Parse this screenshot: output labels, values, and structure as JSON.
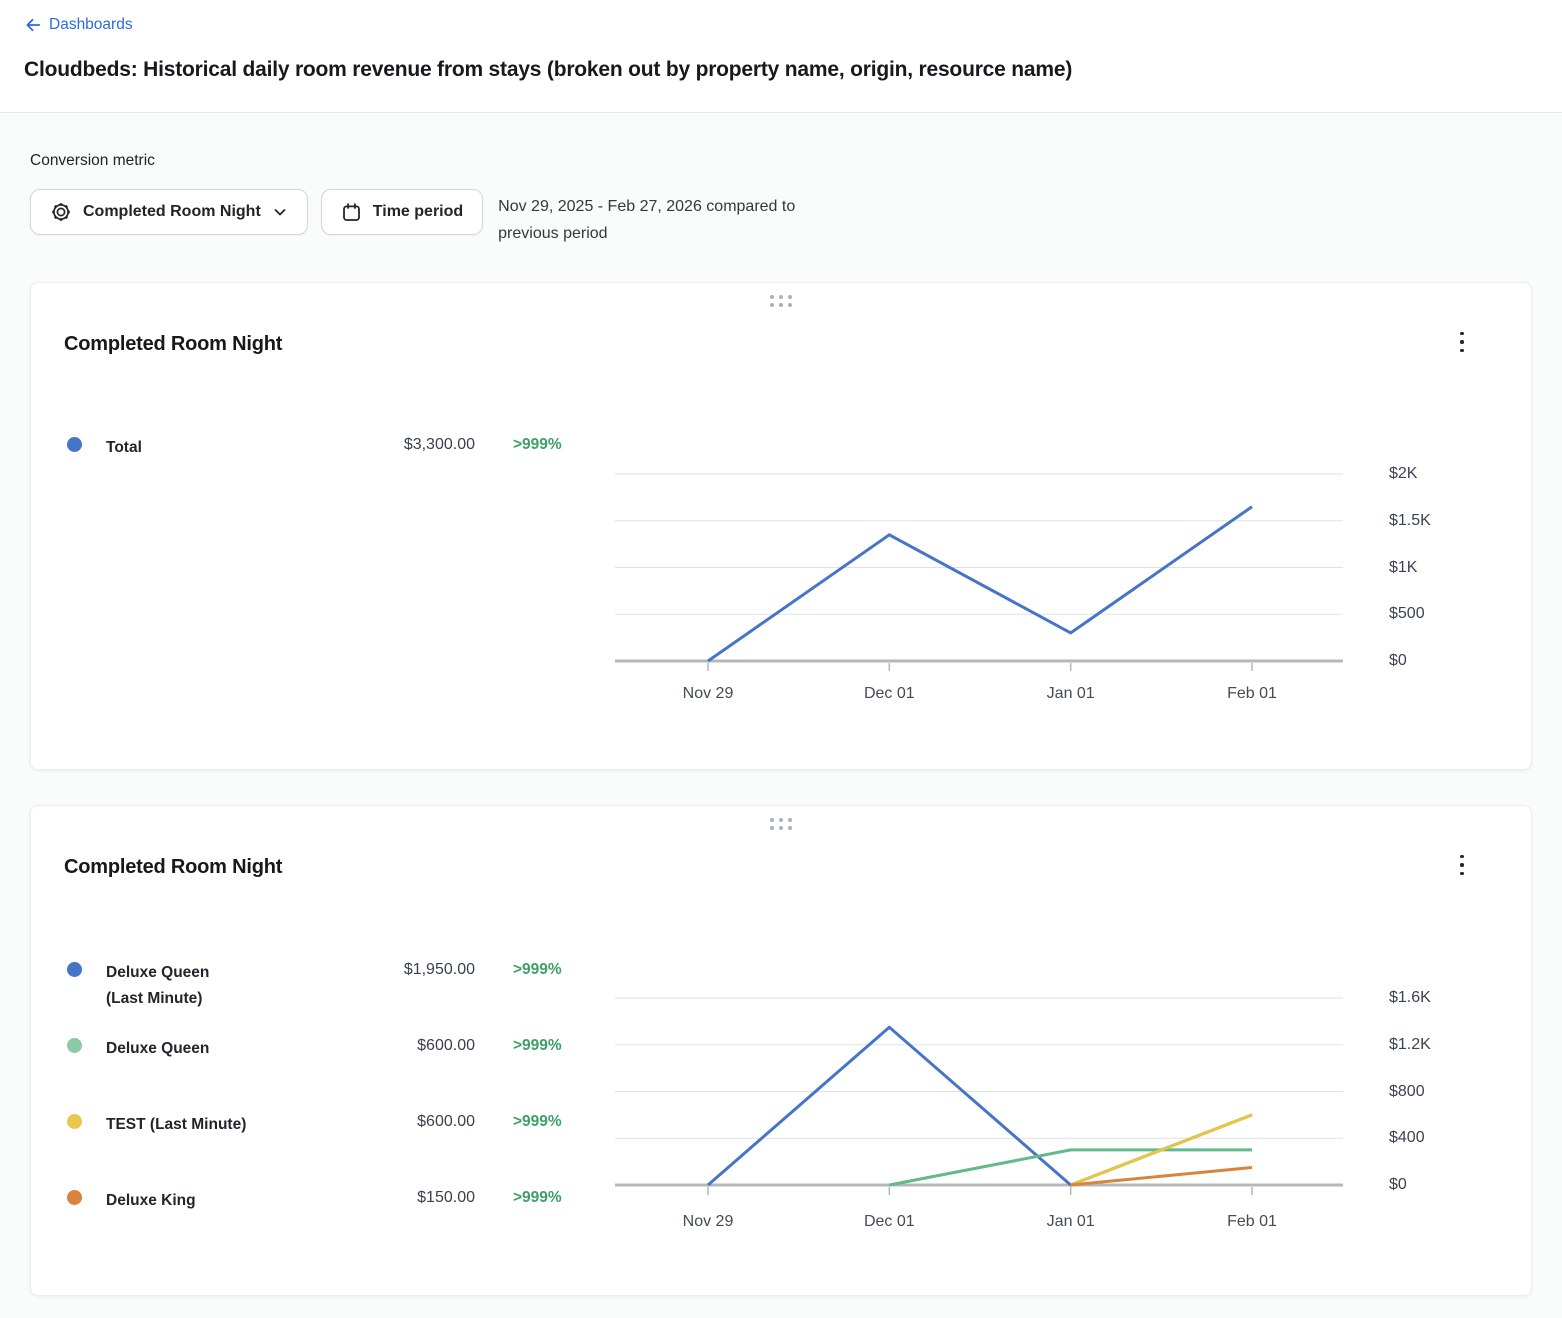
{
  "header": {
    "back": "Dashboards",
    "title": "Cloudbeds: Historical daily room revenue from stays (broken out by property name, origin, resource name)"
  },
  "controls": {
    "metric_label": "Conversion metric",
    "metric_value": "Completed Room Night",
    "time_period": "Time period",
    "date_line1": "Nov 29, 2025 - Feb 27, 2026 compared to",
    "date_line2": "previous period"
  },
  "colors": {
    "link_blue": "#2e6ae0",
    "positive_green": "#3da066",
    "axis_gray": "#b4b8bc",
    "gridline": "#dde2e8"
  },
  "chart_data": [
    {
      "type": "line",
      "title": "Completed Room Night",
      "x": [
        "Nov 29",
        "Dec 01",
        "Jan 01",
        "Feb 01"
      ],
      "ytick_labels": [
        "$2K",
        "$1.5K",
        "$1K",
        "$500",
        "$0"
      ],
      "ytick_values": [
        2000,
        1500,
        1000,
        500,
        0
      ],
      "ylim": [
        0,
        2000
      ],
      "grid": true,
      "legend_position": "left",
      "series": [
        {
          "name": "Total",
          "name_line2": null,
          "color": "#4674c7",
          "line_color": "#4674c7",
          "values": [
            0,
            1350,
            300,
            1650
          ],
          "total": "$3,300.00",
          "change": ">999%"
        }
      ]
    },
    {
      "type": "line",
      "title": "Completed Room Night",
      "x": [
        "Nov 29",
        "Dec 01",
        "Jan 01",
        "Feb 01"
      ],
      "ytick_labels": [
        "$1.6K",
        "$1.2K",
        "$800",
        "$400",
        "$0"
      ],
      "ytick_values": [
        1600,
        1200,
        800,
        400,
        0
      ],
      "ylim": [
        0,
        1600
      ],
      "grid": true,
      "legend_position": "left",
      "series": [
        {
          "name": "Deluxe Queen",
          "name_line2": "(Last Minute)",
          "color": "#4674c7",
          "line_color": "#4674c7",
          "values": [
            0,
            1350,
            0,
            600
          ],
          "total": "$1,950.00",
          "change": ">999%"
        },
        {
          "name": "Deluxe Queen",
          "name_line2": null,
          "color": "#8acaa8",
          "line_color": "#63b88c",
          "values": [
            null,
            0,
            300,
            300
          ],
          "total": "$600.00",
          "change": ">999%"
        },
        {
          "name": "TEST (Last Minute)",
          "name_line2": null,
          "color": "#e9c750",
          "line_color": "#eac53e",
          "values": [
            null,
            null,
            0,
            600
          ],
          "total": "$600.00",
          "change": ">999%"
        },
        {
          "name": "Deluxe King",
          "name_line2": null,
          "color": "#d9833f",
          "line_color": "#d9833f",
          "values": [
            null,
            null,
            0,
            150
          ],
          "total": "$150.00",
          "change": ">999%"
        }
      ]
    }
  ]
}
